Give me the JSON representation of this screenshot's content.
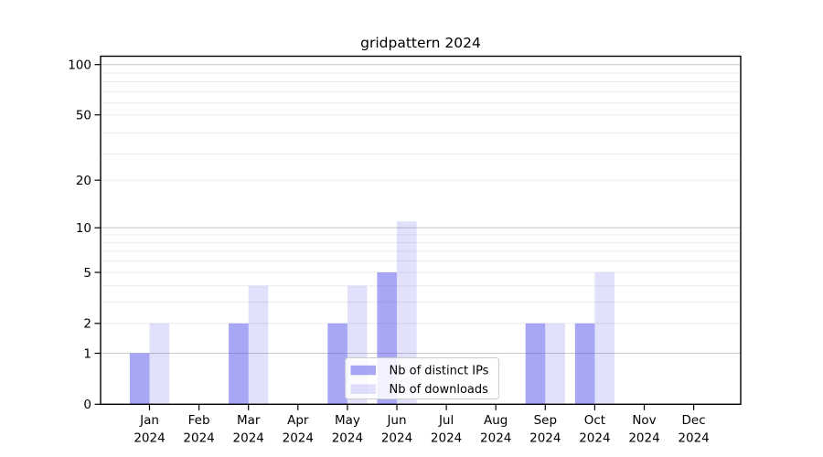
{
  "title": "gridpattern 2024",
  "chart_data": {
    "type": "bar",
    "title": "gridpattern 2024",
    "categories": [
      "Jan 2024",
      "Feb 2024",
      "Mar 2024",
      "Apr 2024",
      "May 2024",
      "Jun 2024",
      "Jul 2024",
      "Aug 2024",
      "Sep 2024",
      "Oct 2024",
      "Nov 2024",
      "Dec 2024"
    ],
    "x_months": [
      "Jan",
      "Feb",
      "Mar",
      "Apr",
      "May",
      "Jun",
      "Jul",
      "Aug",
      "Sep",
      "Oct",
      "Nov",
      "Dec"
    ],
    "x_year": "2024",
    "series": [
      {
        "name": "Nb of distinct IPs",
        "color": "rgba(87,87,235,0.52)",
        "solid_hex": "#a8a8f5",
        "values": [
          1,
          0,
          2,
          0,
          2,
          5,
          0,
          0,
          2,
          2,
          0,
          0
        ]
      },
      {
        "name": "Nb of downloads",
        "color": "rgba(87,87,235,0.18)",
        "solid_hex": "#dedefb",
        "values": [
          2,
          0,
          4,
          0,
          4,
          11,
          0,
          0,
          2,
          5,
          0,
          0
        ]
      }
    ],
    "y_axis": {
      "scale": "log10(1+v)",
      "ticks": [
        0,
        1,
        2,
        5,
        10,
        20,
        50,
        100
      ],
      "major_grid": [
        1,
        10,
        100
      ],
      "minor_grid": [
        2,
        3,
        4,
        5,
        6,
        7,
        8,
        9,
        20,
        29,
        39,
        50,
        59,
        69,
        79,
        89
      ],
      "ylim": [
        0,
        111
      ]
    },
    "grid": true,
    "legend": {
      "position": "lower center",
      "labels": [
        "Nb of distinct IPs",
        "Nb of downloads"
      ]
    }
  },
  "colors": {
    "bar_ips": "rgba(87,87,235,0.52)",
    "bar_downloads": "rgba(87,87,235,0.18)",
    "grid_major": "#c9c9c9",
    "grid_minor": "#ebebeb",
    "axis": "#000000",
    "tick_text": "#000000",
    "legend_border": "#cccccc",
    "legend_bg": "rgba(255,255,255,0.85)"
  }
}
